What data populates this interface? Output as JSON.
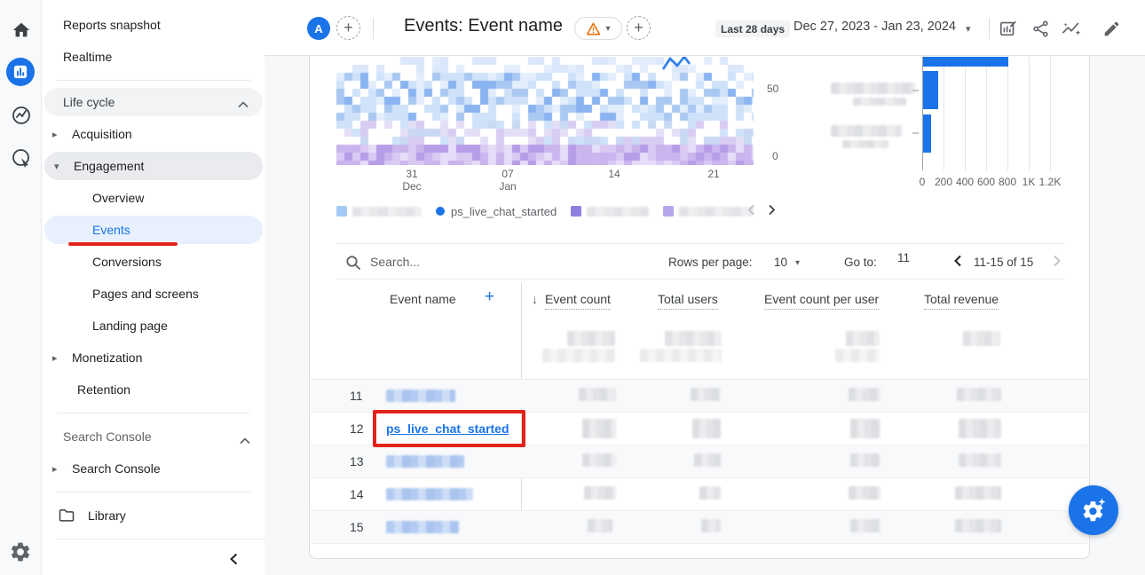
{
  "header": {
    "avatar": "A",
    "title": "Events: Event name",
    "date_label": "Last 28 days",
    "date_range": "Dec 27, 2023 - Jan 23, 2024"
  },
  "icons": {
    "caret_right": "▸",
    "caret_down": "▾",
    "caret_small": "▾",
    "plus": "+",
    "sort_desc": "↓"
  },
  "sidebar": {
    "items": [
      {
        "label": "Reports snapshot"
      },
      {
        "label": "Realtime"
      },
      {
        "label": "Life cycle"
      },
      {
        "label": "Acquisition"
      },
      {
        "label": "Engagement"
      },
      {
        "label": "Overview"
      },
      {
        "label": "Events"
      },
      {
        "label": "Conversions"
      },
      {
        "label": "Pages and screens"
      },
      {
        "label": "Landing page"
      },
      {
        "label": "Monetization"
      },
      {
        "label": "Retention"
      },
      {
        "label": "Search Console"
      },
      {
        "label": "Search Console"
      },
      {
        "label": "Library"
      }
    ]
  },
  "chart_data": [
    {
      "type": "line",
      "title": "Event count by Event name over time",
      "x_ticks": [
        {
          "day": "31",
          "month": "Dec"
        },
        {
          "day": "07",
          "month": "Jan"
        },
        {
          "day": "14",
          "month": ""
        },
        {
          "day": "21",
          "month": ""
        }
      ],
      "y_ticks": [
        "50",
        "0"
      ],
      "ylim": [
        0,
        60
      ],
      "series": [
        {
          "name": "ps_live_chat_started",
          "highlighted": true,
          "values": []
        }
      ],
      "note": "series data blurred/redacted in screenshot"
    },
    {
      "type": "bar",
      "orientation": "horizontal",
      "x_ticks": [
        "0",
        "200",
        "400",
        "600",
        "800",
        "1K",
        "1.2K"
      ],
      "xlim": [
        0,
        1200
      ],
      "categories": [
        "(redacted)",
        "(redacted)",
        "(redacted)"
      ],
      "values": [
        800,
        130,
        75
      ],
      "note": "top bar cut off by scroll; category labels blurred"
    }
  ],
  "legend": {
    "items": [
      {
        "label": "",
        "redacted": true,
        "swatch": "#a3c9f5"
      },
      {
        "label": "ps_live_chat_started",
        "redacted": false,
        "swatch": "#1a73e8"
      },
      {
        "label": "",
        "redacted": true,
        "swatch": "#8f7ee0"
      },
      {
        "label": "",
        "redacted": true,
        "swatch": "#b5a6ec"
      }
    ]
  },
  "table": {
    "search_placeholder": "Search...",
    "pagination": {
      "rows_per_page_label": "Rows per page:",
      "rows_per_page": "10",
      "goto_label": "Go to:",
      "goto_value": "11",
      "range": "11-15 of 15"
    },
    "dimension_header": "Event name",
    "metric_headers": [
      "Event count",
      "Total users",
      "Event count per user",
      "Total revenue"
    ],
    "rows": [
      {
        "num": "11",
        "name": "",
        "redacted": true
      },
      {
        "num": "12",
        "name": "ps_live_chat_started",
        "redacted": false,
        "annotated": true
      },
      {
        "num": "13",
        "name": "",
        "redacted": true
      },
      {
        "num": "14",
        "name": "",
        "redacted": true
      },
      {
        "num": "15",
        "name": "",
        "redacted": true
      }
    ]
  },
  "colors": {
    "accent_blue": "#1a73e8",
    "selected_nav_bg": "#e8f0fe",
    "annotation_red": "#e2231a",
    "warning_orange": "#e8710a",
    "content_bg": "#f6f8fa",
    "zebra_row": "#f8f9fa"
  }
}
